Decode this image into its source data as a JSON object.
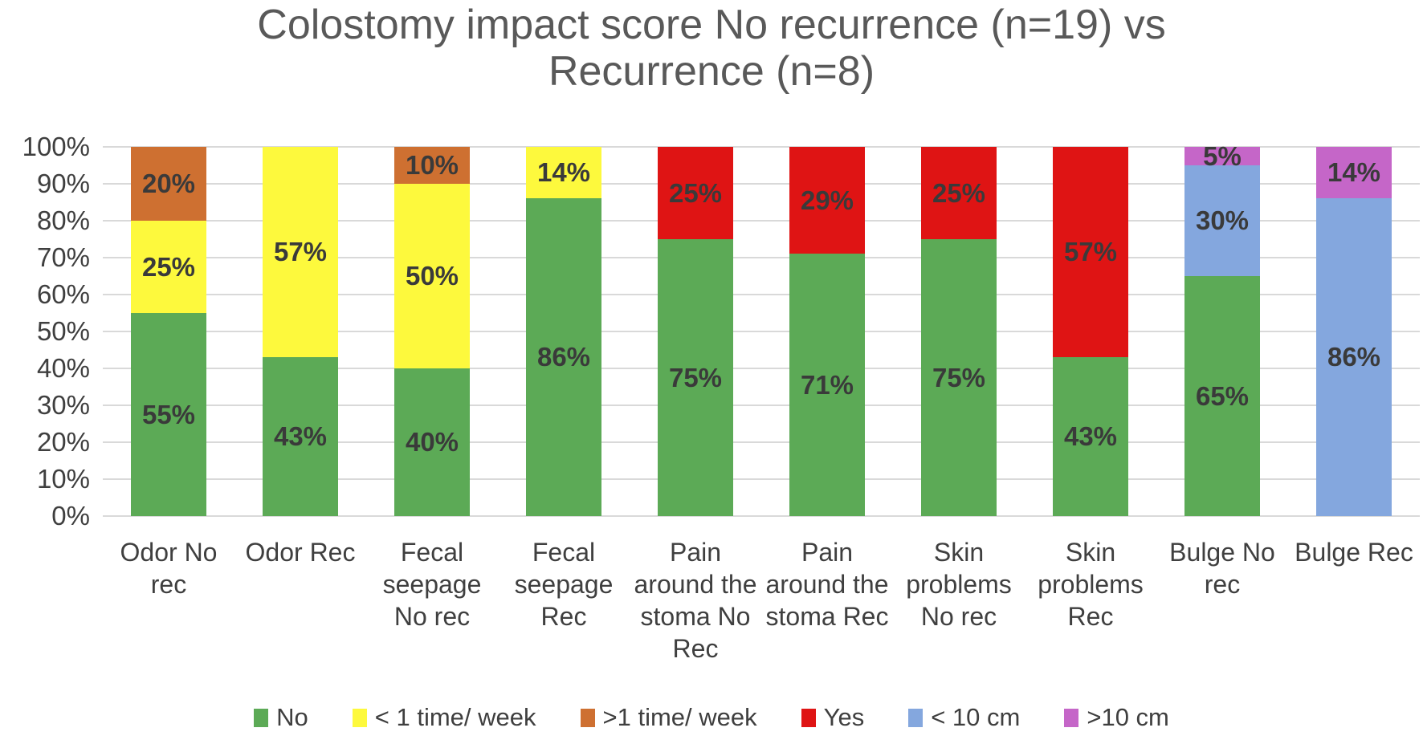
{
  "chart_data": {
    "type": "bar",
    "subtype": "stacked-100-percent-column",
    "title": "Colostomy impact score No recurrence (n=19) vs Recurrence (n=8)",
    "xlabel": "",
    "ylabel": "",
    "ylim": [
      0,
      100
    ],
    "y_tick_labels": [
      "0%",
      "10%",
      "20%",
      "30%",
      "40%",
      "50%",
      "60%",
      "70%",
      "80%",
      "90%",
      "100%"
    ],
    "grid": "horizontal",
    "legend_position": "bottom",
    "data_label_suffix": "%",
    "categories": [
      "Odor No rec",
      "Odor Rec",
      "Fecal seepage No rec",
      "Fecal seepage Rec",
      "Pain around the stoma No Rec",
      "Pain around the stoma Rec",
      "Skin problems No rec",
      "Skin problems Rec",
      "Bulge No rec",
      "Bulge Rec"
    ],
    "series": [
      {
        "name": "No",
        "color": "#5CAA56",
        "values": [
          55,
          43,
          40,
          86,
          75,
          71,
          75,
          43,
          65,
          0
        ]
      },
      {
        "name": "< 1 time/ week",
        "color": "#FDF93D",
        "values": [
          25,
          57,
          50,
          14,
          0,
          0,
          0,
          0,
          0,
          0
        ]
      },
      {
        "name": ">1 time/ week",
        "color": "#CE7031",
        "values": [
          20,
          0,
          10,
          0,
          0,
          0,
          0,
          0,
          0,
          0
        ]
      },
      {
        "name": "Yes",
        "color": "#DF1414",
        "values": [
          0,
          0,
          0,
          0,
          25,
          29,
          25,
          57,
          0,
          0
        ]
      },
      {
        "name": "< 10 cm",
        "color": "#84A7DE",
        "values": [
          0,
          0,
          0,
          0,
          0,
          0,
          0,
          0,
          30,
          86
        ]
      },
      {
        "name": ">10 cm",
        "color": "#C566C8",
        "values": [
          0,
          0,
          0,
          0,
          0,
          0,
          0,
          0,
          5,
          14
        ]
      }
    ]
  },
  "style_colors": {
    "title_text": "#595959",
    "axis_text": "#3f3f3f",
    "data_label_text": "#3a3a3a",
    "gridline": "#d9d9d9",
    "background": "#ffffff"
  }
}
